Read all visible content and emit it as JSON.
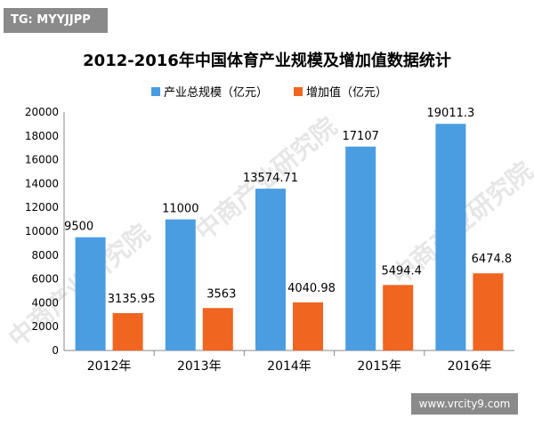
{
  "tag": "TG: MYYJJPP",
  "site": "www.vrcity9.com",
  "watermarks": [
    "中商产业研究院",
    "中商产业研究院",
    "中商产业研究院"
  ],
  "chart_data": {
    "type": "bar",
    "title": "2012-2016年中国体育产业规模及增加值数据统计",
    "categories": [
      "2012年",
      "2013年",
      "2014年",
      "2015年",
      "2016年"
    ],
    "series": [
      {
        "name": "产业总规模（亿元）",
        "values": [
          9500,
          11000,
          13574.71,
          17107,
          19011.3
        ],
        "labels": [
          "9500",
          "11000",
          "13574.71",
          "17107",
          "19011.3"
        ],
        "color": "#4a9de0"
      },
      {
        "name": "增加值（亿元）",
        "values": [
          3135.95,
          3563,
          4040.98,
          5494.4,
          6474.8
        ],
        "labels": [
          "3135.95",
          "3563",
          "4040.98",
          "5494.4",
          "6474.8"
        ],
        "color": "#f0651f"
      }
    ],
    "ylim": [
      0,
      20000
    ],
    "yticks": [
      "0",
      "2000",
      "4000",
      "6000",
      "8000",
      "10000",
      "12000",
      "14000",
      "16000",
      "18000",
      "20000"
    ],
    "legend": "top",
    "grid": false
  }
}
